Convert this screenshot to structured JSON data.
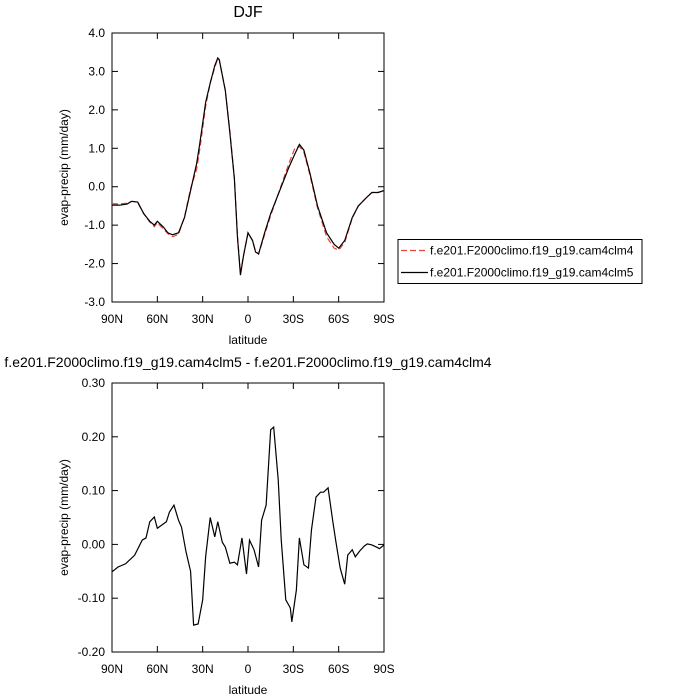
{
  "chart_data": [
    {
      "type": "line",
      "title": "DJF",
      "xlabel": "latitude",
      "ylabel": "evap-precip (mm/day)",
      "x": [
        90,
        85,
        80,
        77,
        73,
        69,
        65,
        62,
        60,
        56,
        53,
        50,
        46,
        42,
        38,
        34,
        32,
        28,
        25,
        22,
        20,
        19,
        15,
        12,
        9,
        7,
        5,
        3,
        0,
        -3,
        -5,
        -7,
        -11,
        -15,
        -19,
        -23,
        -27,
        -31,
        -34,
        -37,
        -41,
        -46,
        -52,
        -57,
        -60,
        -64,
        -69,
        -73,
        -78,
        -82,
        -86,
        -90
      ],
      "series": [
        {
          "name": "f.e201.F2000climo.f19_g19.cam4clm4",
          "color": "#e8423c",
          "linestyle": "dashed",
          "values": [
            -0.44,
            -0.45,
            -0.43,
            -0.38,
            -0.41,
            -0.7,
            -0.92,
            -1.04,
            -0.93,
            -1.1,
            -1.22,
            -1.3,
            -1.24,
            -0.78,
            -0.05,
            0.45,
            0.95,
            2.1,
            2.7,
            3.1,
            3.35,
            3.3,
            2.5,
            1.45,
            0.23,
            -1.25,
            -2.25,
            -1.8,
            -1.2,
            -1.4,
            -1.68,
            -1.75,
            -1.25,
            -0.75,
            -0.3,
            0.15,
            0.6,
            1.0,
            1.05,
            0.9,
            0.3,
            -0.55,
            -1.3,
            -1.6,
            -1.65,
            -1.45,
            -0.82,
            -0.5,
            -0.3,
            -0.15,
            -0.15,
            -0.1
          ]
        },
        {
          "name": "f.e201.F2000climo.f19_g19.cam4clm5",
          "color": "#000000",
          "linestyle": "solid",
          "values": [
            -0.48,
            -0.48,
            -0.45,
            -0.38,
            -0.4,
            -0.7,
            -0.9,
            -1.0,
            -0.9,
            -1.05,
            -1.2,
            -1.25,
            -1.2,
            -0.8,
            -0.1,
            0.6,
            1.1,
            2.2,
            2.7,
            3.15,
            3.35,
            3.3,
            2.5,
            1.4,
            0.2,
            -1.3,
            -2.3,
            -1.8,
            -1.2,
            -1.4,
            -1.7,
            -1.75,
            -1.2,
            -0.7,
            -0.3,
            0.1,
            0.5,
            0.85,
            1.1,
            0.95,
            0.35,
            -0.5,
            -1.2,
            -1.5,
            -1.6,
            -1.4,
            -0.8,
            -0.5,
            -0.3,
            -0.15,
            -0.15,
            -0.1
          ]
        }
      ],
      "xlim": [
        90,
        -90
      ],
      "xticks": [
        {
          "value": 90,
          "label": "90N"
        },
        {
          "value": 60,
          "label": "60N"
        },
        {
          "value": 30,
          "label": "30N"
        },
        0,
        {
          "value": -30,
          "label": "30S"
        },
        {
          "value": -60,
          "label": "60S"
        },
        {
          "value": -90,
          "label": "90S"
        }
      ],
      "ylim": [
        -3,
        4
      ],
      "yticks": [
        {
          "value": 4,
          "label": "4.0"
        },
        {
          "value": 3,
          "label": "3.0"
        },
        {
          "value": 2,
          "label": "2.0"
        },
        {
          "value": 1,
          "label": "1.0"
        },
        {
          "value": 0,
          "label": "0.0"
        },
        {
          "value": -1,
          "label": "-1.0"
        },
        {
          "value": -2,
          "label": "-2.0"
        },
        {
          "value": -3,
          "label": "-3.0"
        }
      ],
      "legend": "right"
    },
    {
      "type": "line",
      "title": "f.e201.F2000climo.f19_g19.cam4clm5 - f.e201.F2000climo.f19_g19.cam4clm4",
      "xlabel": "latitude",
      "ylabel": "evap-precip (mm/day)",
      "x": [
        90,
        86,
        81,
        75,
        70,
        67.5,
        65,
        62,
        60,
        57,
        54,
        52,
        49,
        46,
        44,
        41,
        38,
        36,
        33,
        30,
        28,
        25,
        22,
        20,
        17,
        15,
        12,
        9,
        7,
        4,
        1,
        -1,
        -4,
        -7,
        -9,
        -12,
        -15,
        -17,
        -20,
        -22,
        -25,
        -28,
        -29,
        -32,
        -34,
        -37,
        -40,
        -42,
        -45,
        -48,
        -50,
        -53,
        -56,
        -58,
        -61,
        -64,
        -66,
        -69,
        -71,
        -74,
        -77,
        -79,
        -82,
        -85,
        -87,
        -90
      ],
      "values": [
        -0.051,
        -0.042,
        -0.036,
        -0.02,
        0.008,
        0.012,
        0.042,
        0.051,
        0.03,
        0.036,
        0.042,
        0.06,
        0.073,
        0.045,
        0.032,
        -0.014,
        -0.05,
        -0.15,
        -0.148,
        -0.103,
        -0.022,
        0.05,
        0.014,
        0.042,
        0.004,
        -0.005,
        -0.035,
        -0.033,
        -0.038,
        0.012,
        -0.055,
        0.008,
        -0.01,
        -0.042,
        0.045,
        0.073,
        0.213,
        0.218,
        0.12,
        0.008,
        -0.103,
        -0.118,
        -0.144,
        -0.085,
        0.012,
        -0.038,
        -0.044,
        0.027,
        0.088,
        0.097,
        0.097,
        0.105,
        0.045,
        0.008,
        -0.044,
        -0.074,
        -0.02,
        -0.01,
        -0.023,
        -0.012,
        -0.003,
        0.001,
        -0.001,
        -0.005,
        -0.008,
        -0.001
      ],
      "color": "#000000",
      "xlim": [
        90,
        -90
      ],
      "xticks": [
        {
          "value": 90,
          "label": "90N"
        },
        {
          "value": 60,
          "label": "60N"
        },
        {
          "value": 30,
          "label": "30N"
        },
        0,
        {
          "value": -30,
          "label": "30S"
        },
        {
          "value": -60,
          "label": "60S"
        },
        {
          "value": -90,
          "label": "90S"
        }
      ],
      "ylim": [
        -0.2,
        0.3
      ],
      "yticks": [
        {
          "value": 0.3,
          "label": "0.30"
        },
        {
          "value": 0.2,
          "label": "0.20"
        },
        {
          "value": 0.1,
          "label": "0.10"
        },
        {
          "value": 0,
          "label": "0.00"
        },
        {
          "value": -0.1,
          "label": "-0.10"
        },
        {
          "value": -0.2,
          "label": "-0.20"
        }
      ]
    }
  ]
}
